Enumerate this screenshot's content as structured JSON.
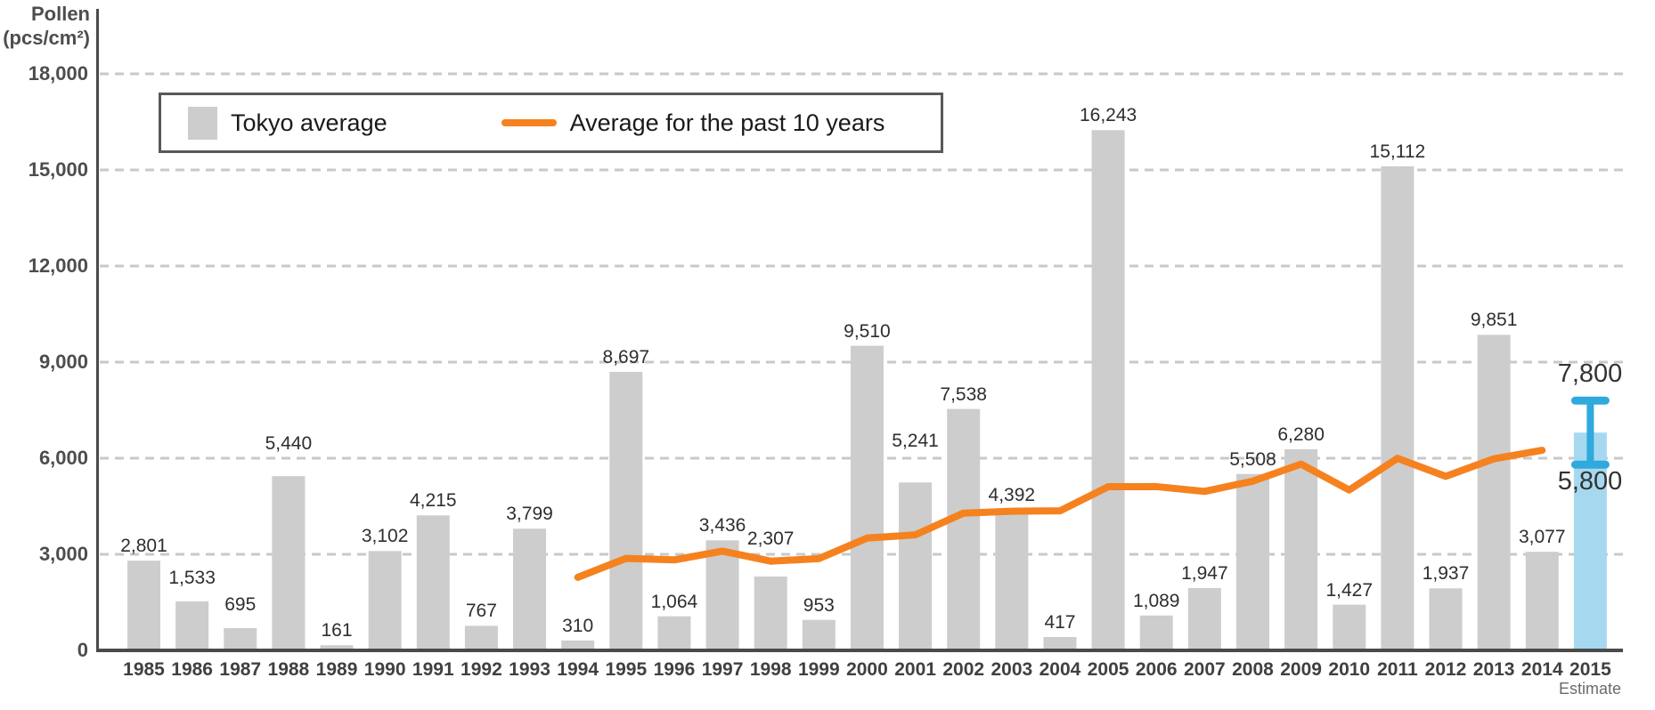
{
  "axis_title": {
    "line1": "Pollen",
    "line2": "(pcs/cm²)"
  },
  "legend": {
    "bar_label": "Tokyo average",
    "line_label": "Average for the past 10 years"
  },
  "colors": {
    "bar": "#cdcdcd",
    "estimate_bar": "#a6d9f0",
    "whisker": "#30a9dc",
    "line": "#f5821f",
    "grid": "#c9c9c9",
    "axis": "#4a4a4a"
  },
  "estimate": {
    "year": "2015",
    "note": "Estimate",
    "high": 7800,
    "low": 5800,
    "bar_top": 6800,
    "high_label": "7,800",
    "low_label": "5,800"
  },
  "chart_data": {
    "type": "bar+line",
    "title": "",
    "ylabel": "Pollen (pcs/cm²)",
    "xlabel": "",
    "ylim": [
      0,
      18000
    ],
    "ytick_step": 3000,
    "ytick_labels": [
      "0",
      "3,000",
      "6,000",
      "9,000",
      "12,000",
      "15,000",
      "18,000"
    ],
    "grid": "dashed horizontal",
    "legend_position": "top-left-inside",
    "categories": [
      "1985",
      "1986",
      "1987",
      "1988",
      "1989",
      "1990",
      "1991",
      "1992",
      "1993",
      "1994",
      "1995",
      "1996",
      "1997",
      "1998",
      "1999",
      "2000",
      "2001",
      "2002",
      "2003",
      "2004",
      "2005",
      "2006",
      "2007",
      "2008",
      "2009",
      "2010",
      "2011",
      "2012",
      "2013",
      "2014",
      "2015"
    ],
    "series": [
      {
        "name": "Tokyo average",
        "type": "bar",
        "values": [
          2801,
          1533,
          695,
          5440,
          161,
          3102,
          4215,
          767,
          3799,
          310,
          8697,
          1064,
          3436,
          2307,
          953,
          9510,
          5241,
          7538,
          4392,
          417,
          16243,
          1089,
          1947,
          5508,
          6280,
          1427,
          15112,
          1937,
          9851,
          3077,
          6800
        ],
        "last_is_estimate": true,
        "estimate_range": [
          5800,
          7800
        ]
      },
      {
        "name": "Average for the past 10 years",
        "type": "line",
        "start_year": "1994",
        "values": [
          2282,
          2872,
          2825,
          3099,
          2786,
          2865,
          3506,
          3608,
          4286,
          4345,
          4356,
          5110,
          5113,
          4964,
          5284,
          5817,
          5008,
          5995,
          5435,
          5981,
          6247
        ]
      }
    ]
  }
}
